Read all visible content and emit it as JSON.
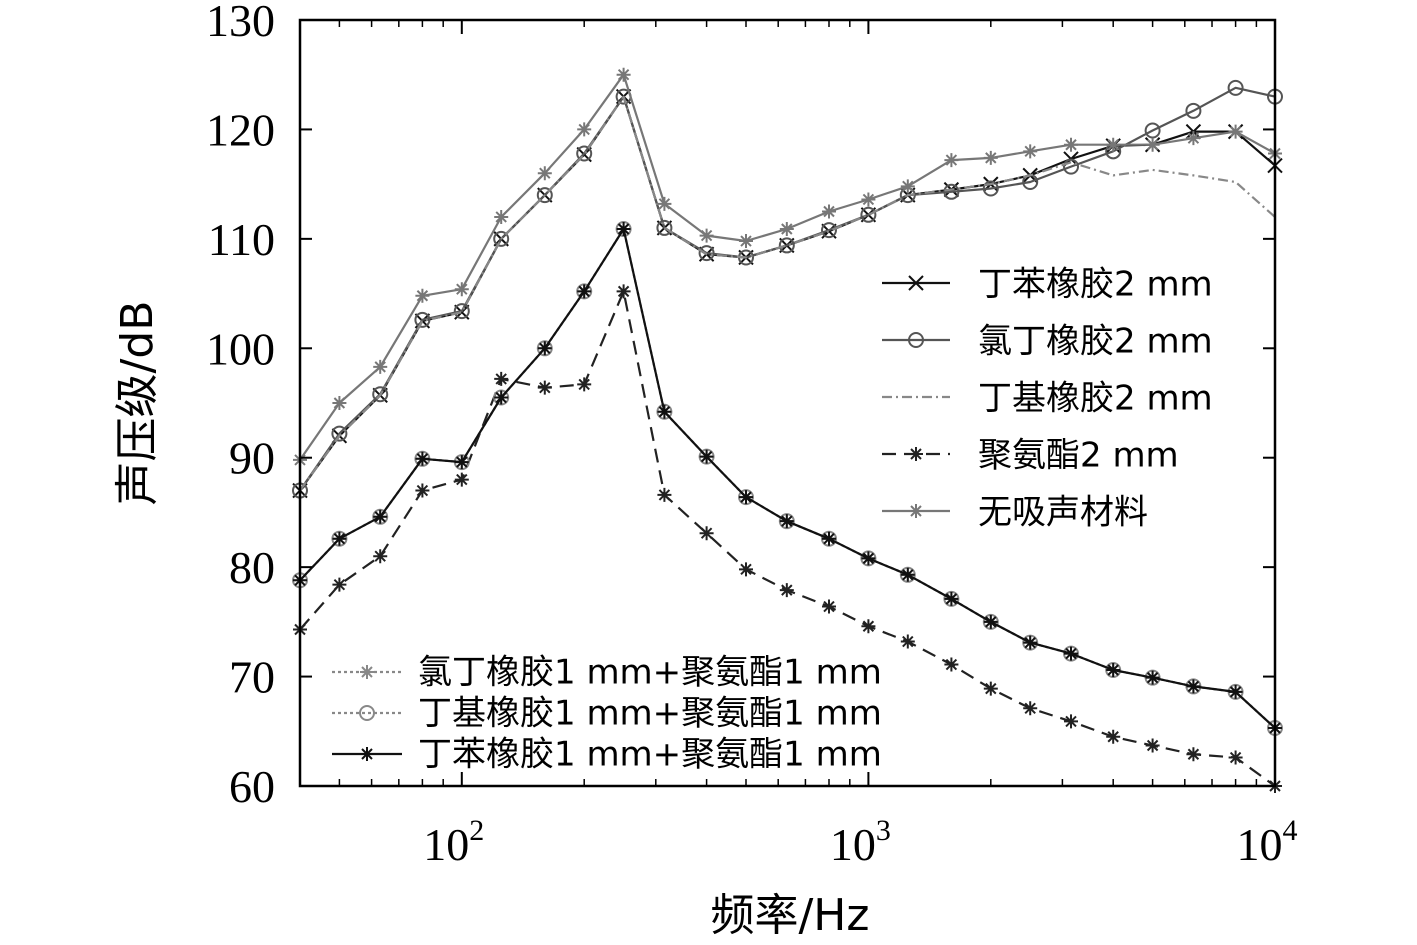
{
  "chart_data": {
    "type": "line",
    "xlabel": "频率/Hz",
    "ylabel": "声压级/dB",
    "xscale": "log",
    "xlim": [
      40,
      10000
    ],
    "ylim": [
      60,
      130
    ],
    "xticks": [
      {
        "value": 100,
        "label": "10",
        "exp": "2"
      },
      {
        "value": 1000,
        "label": "10",
        "exp": "3"
      },
      {
        "value": 10000,
        "label": "10",
        "exp": "4"
      }
    ],
    "yticks": [
      60,
      70,
      80,
      90,
      100,
      110,
      120,
      130
    ],
    "grid": false,
    "x": [
      40,
      50,
      63,
      80,
      100,
      125,
      160,
      200,
      250,
      315,
      400,
      500,
      630,
      800,
      1000,
      1250,
      1600,
      2000,
      2500,
      3150,
      4000,
      5000,
      6300,
      8000,
      10000
    ],
    "series": [
      {
        "name": "丁苯橡胶2 mm",
        "color": "#111111",
        "dash": "",
        "marker": "x",
        "legend": "upper",
        "values": [
          87,
          92,
          95.7,
          102.5,
          103.3,
          110,
          114,
          117.7,
          123,
          111,
          108.6,
          108.3,
          109.4,
          110.7,
          112.2,
          114,
          114.5,
          115,
          115.8,
          117.3,
          118.5,
          118.6,
          119.8,
          119.8,
          116.7
        ]
      },
      {
        "name": "氯丁橡胶2 mm",
        "color": "#555555",
        "dash": "",
        "marker": "circle",
        "legend": "upper",
        "values": [
          87,
          92.2,
          95.8,
          102.6,
          103.4,
          110,
          114,
          117.8,
          123,
          111,
          108.7,
          108.3,
          109.4,
          110.8,
          112.2,
          114,
          114.3,
          114.6,
          115.2,
          116.6,
          118,
          119.9,
          121.7,
          123.8,
          123
        ]
      },
      {
        "name": "丁基橡胶2 mm",
        "color": "#888888",
        "dash": "10,4,2,4",
        "marker": "none",
        "legend": "upper",
        "values": [
          87,
          92,
          95.7,
          102.5,
          103.3,
          110,
          114,
          117.7,
          123,
          111,
          108.6,
          108.3,
          109.4,
          110.7,
          112.2,
          114,
          114.5,
          115,
          115.8,
          117,
          115.8,
          116.3,
          115.8,
          115.2,
          112
        ]
      },
      {
        "name": "聚氨酯2 mm",
        "color": "#222222",
        "dash": "14,8",
        "marker": "star",
        "legend": "upper",
        "values": [
          74.3,
          78.4,
          81,
          87,
          88,
          97.2,
          96.4,
          96.7,
          105.2,
          86.6,
          83.1,
          79.8,
          77.9,
          76.4,
          74.6,
          73.2,
          71.1,
          68.9,
          67.1,
          65.9,
          64.5,
          63.7,
          62.9,
          62.6,
          60
        ]
      },
      {
        "name": "无吸声材料",
        "color": "#777777",
        "dash": "",
        "marker": "star",
        "legend": "upper",
        "values": [
          89.8,
          95,
          98.3,
          104.8,
          105.4,
          112,
          116,
          120,
          125,
          113.2,
          110.3,
          109.8,
          110.9,
          112.5,
          113.6,
          114.8,
          117.2,
          117.4,
          118,
          118.6,
          118.6,
          118.6,
          119.2,
          119.8,
          117.8
        ]
      },
      {
        "name": "氯丁橡胶1 mm+聚氨酯1 mm",
        "color": "#888888",
        "dash": "3,3",
        "marker": "star",
        "legend": "lower",
        "values": [
          78.8,
          82.6,
          84.6,
          89.9,
          89.6,
          95.5,
          100,
          105.2,
          110.9,
          94.2,
          90.1,
          86.4,
          84.2,
          82.6,
          80.8,
          79.3,
          77.1,
          75,
          73.1,
          72.1,
          70.6,
          69.9,
          69.1,
          68.6,
          65.3
        ]
      },
      {
        "name": "丁基橡胶1 mm+聚氨酯1 mm",
        "color": "#888888",
        "dash": "3,3",
        "marker": "circle",
        "legend": "lower",
        "values": [
          78.8,
          82.6,
          84.6,
          89.9,
          89.6,
          95.5,
          100,
          105.2,
          110.9,
          94.2,
          90.1,
          86.4,
          84.2,
          82.6,
          80.8,
          79.3,
          77.1,
          75,
          73.1,
          72.1,
          70.6,
          69.9,
          69.1,
          68.6,
          65.3
        ]
      },
      {
        "name": "丁苯橡胶1 mm+聚氨酯1 mm",
        "color": "#111111",
        "dash": "",
        "marker": "star",
        "legend": "lower",
        "values": [
          78.8,
          82.6,
          84.6,
          89.9,
          89.6,
          95.5,
          100,
          105.2,
          110.9,
          94.2,
          90.1,
          86.4,
          84.2,
          82.6,
          80.8,
          79.3,
          77.1,
          75,
          73.1,
          72.1,
          70.6,
          69.9,
          69.1,
          68.6,
          65.3
        ]
      }
    ]
  }
}
